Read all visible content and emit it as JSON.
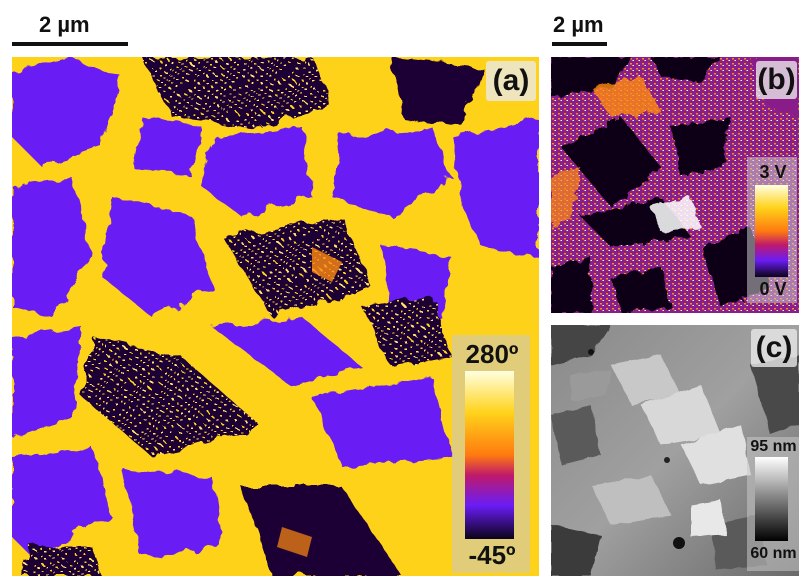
{
  "scale_bars": {
    "left": "2 µm",
    "right": "2 µm"
  },
  "panel_a": {
    "label": "(a)",
    "colorbar": {
      "max": "280º",
      "min": "-45º"
    },
    "colors": {
      "dark": "#1a0635",
      "purple": "#6a1cf5",
      "yellow": "#ffd21a",
      "orange": "#ff8a10"
    }
  },
  "panel_b": {
    "label": "(b)",
    "colorbar": {
      "max": "3 V",
      "min": "0 V"
    },
    "colors": {
      "dark": "#0c0418",
      "magenta": "#8a1f8a",
      "orange": "#ff8a10",
      "white": "#ffffff"
    }
  },
  "panel_c": {
    "label": "(c)",
    "colorbar": {
      "max": "95 nm",
      "min": "60 nm"
    }
  }
}
